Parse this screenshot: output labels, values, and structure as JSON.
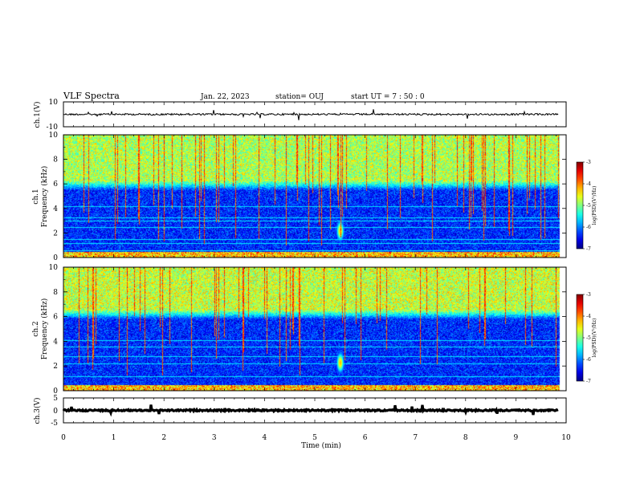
{
  "header": {
    "title": "VLF Spectra",
    "date": "Jan. 22, 2023",
    "station": "station= OUJ",
    "start_ut": "start  UT =   7 : 50 : 0"
  },
  "chart_data": [
    {
      "type": "line",
      "panel": "ch1-waveform",
      "ylabel": "ch.1(V)",
      "ylim": [
        -10,
        10
      ],
      "yticks": [
        "10",
        "-10"
      ],
      "xlim": [
        0,
        10
      ],
      "approx_level": 0,
      "approx_noise_amplitude": 0.7,
      "color": "#000000"
    },
    {
      "type": "heatmap",
      "panel": "ch1-spectrogram",
      "ylabel_line1": "ch.1",
      "ylabel_line2": "Frequency  (kHz)",
      "ylim": [
        0,
        10
      ],
      "yticks": [
        "0",
        "2",
        "4",
        "6",
        "8",
        "10"
      ],
      "xlim": [
        0,
        10
      ],
      "colorbar": {
        "label": "log(PSD)(V²/Hz)",
        "range": [
          -7,
          -3
        ],
        "ticks": [
          "-3",
          "-4",
          "-5",
          "-6",
          "-7"
        ]
      },
      "features": {
        "noise_floor_log_psd": -6.8,
        "high_band_khz": [
          5.5,
          10
        ],
        "high_band_log_psd": -4.8,
        "emission_time_min": 5.5,
        "emission_freq_khz": 2.2,
        "horizontal_lines_khz": [
          0.3,
          0.6,
          1.2,
          1.5,
          2.5,
          3.0,
          3.3,
          4.2
        ]
      }
    },
    {
      "type": "heatmap",
      "panel": "ch2-spectrogram",
      "ylabel_line1": "ch.2",
      "ylabel_line2": "Frequency  (kHz)",
      "ylim": [
        0,
        10
      ],
      "yticks": [
        "0",
        "2",
        "4",
        "6",
        "8",
        "10"
      ],
      "xlim": [
        0,
        10
      ],
      "colorbar": {
        "label": "log(PSD)(V²/Hz)",
        "range": [
          -7,
          -3
        ],
        "ticks": [
          "-3",
          "-4",
          "-5",
          "-6",
          "-7"
        ]
      },
      "features": {
        "noise_floor_log_psd": -6.8,
        "high_band_khz": [
          5.8,
          10
        ],
        "high_band_log_psd": -4.7,
        "emission_time_min": 5.5,
        "emission_freq_khz": 2.3,
        "horizontal_lines_khz": [
          0.4,
          1.2,
          2.2,
          2.8,
          3.6,
          4.1
        ]
      }
    },
    {
      "type": "line",
      "panel": "ch3-waveform",
      "ylabel": "ch.3(V)",
      "ylim": [
        -5,
        5
      ],
      "yticks": [
        "5",
        "0",
        "-5"
      ],
      "xlim": [
        0,
        10
      ],
      "approx_level": 0,
      "approx_noise_amplitude": 0.3,
      "color": "#000000"
    }
  ],
  "xaxis": {
    "label": "Time  (min)",
    "ticks": [
      "0",
      "1",
      "2",
      "3",
      "4",
      "5",
      "6",
      "7",
      "8",
      "9",
      "10"
    ],
    "range": [
      0,
      10
    ],
    "data_end": 9.85
  }
}
